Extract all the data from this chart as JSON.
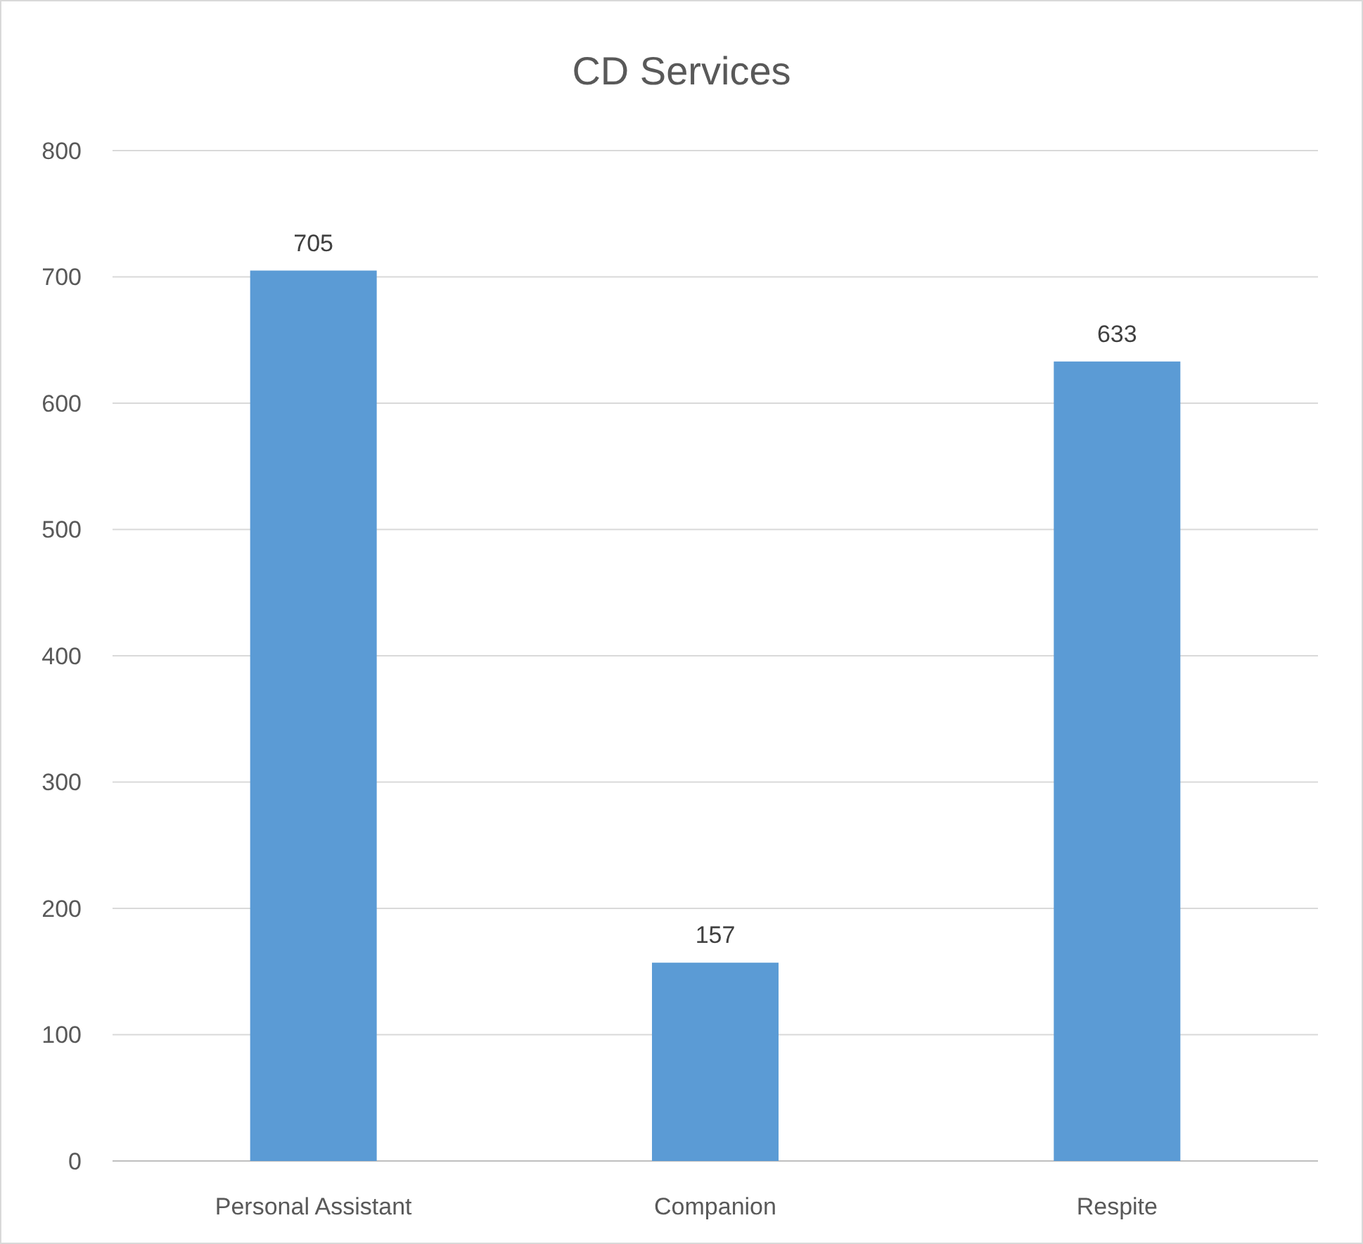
{
  "chart_data": {
    "type": "bar",
    "title": "CD Services",
    "categories": [
      "Personal Assistant",
      "Companion",
      "Respite"
    ],
    "values": [
      705,
      157,
      633
    ],
    "color": "#5b9bd5",
    "ylim": [
      0,
      800
    ],
    "yticks": [
      0,
      100,
      200,
      300,
      400,
      500,
      600,
      700,
      800
    ],
    "grid": "y",
    "data_labels": true
  }
}
